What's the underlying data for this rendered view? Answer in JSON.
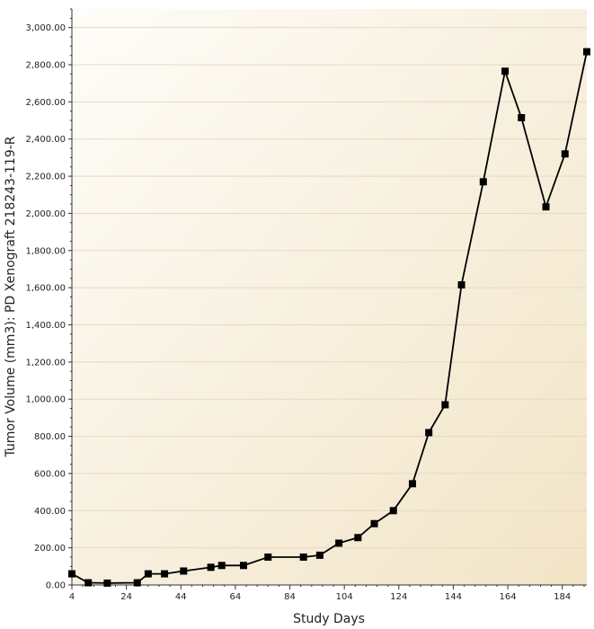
{
  "chart_data": {
    "type": "line",
    "title": "",
    "xlabel": "Study Days",
    "ylabel": "Tumor Volume (mm3): PD Xenograft 218243-119-R",
    "xlim": [
      4,
      193
    ],
    "ylim": [
      0,
      3100
    ],
    "x_ticks": [
      4,
      24,
      44,
      64,
      84,
      104,
      124,
      144,
      164,
      184
    ],
    "y_ticks": [
      0,
      200,
      400,
      600,
      800,
      1000,
      1200,
      1400,
      1600,
      1800,
      2000,
      2200,
      2400,
      2600,
      2800,
      3000
    ],
    "x_tick_labels": [
      "4",
      "24",
      "44",
      "64",
      "84",
      "104",
      "124",
      "144",
      "164",
      "184"
    ],
    "y_tick_labels": [
      "0.00",
      "200.00",
      "400.00",
      "600.00",
      "800.00",
      "1,000.00",
      "1,200.00",
      "1,400.00",
      "1,600.00",
      "1,800.00",
      "2,000.00",
      "2,200.00",
      "2,400.00",
      "2,600.00",
      "2,800.00",
      "3,000.00"
    ],
    "grid": true,
    "colors": {
      "line": "#000000",
      "marker": "#000000",
      "grid": "#e6d9bf",
      "plot_bg_light": "#fefdf9",
      "plot_bg_dark": "#f2e4c6",
      "axis": "#333333"
    },
    "series": [
      {
        "x": [
          4,
          10,
          17,
          28,
          32,
          38,
          45,
          55,
          59,
          67,
          76,
          89,
          95,
          102,
          109,
          115,
          122,
          129,
          135,
          141,
          147,
          155,
          163,
          169,
          178,
          185,
          193
        ],
        "y": [
          60,
          12,
          10,
          12,
          60,
          60,
          75,
          95,
          105,
          105,
          150,
          150,
          160,
          225,
          255,
          330,
          400,
          545,
          820,
          970,
          1615,
          2170,
          2765,
          2515,
          2035,
          2320,
          2870
        ]
      }
    ]
  }
}
